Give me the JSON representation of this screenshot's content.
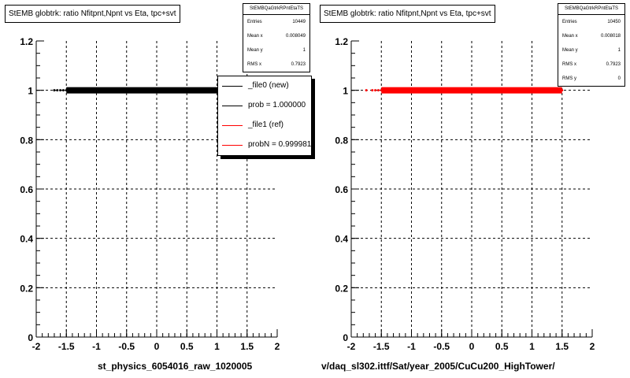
{
  "charts": [
    {
      "title": "StEMB globtrk: ratio Nfitpnt,Npnt vs Eta, tpc+svt",
      "stats": {
        "name": "StEMBQaGtrkRPntEtaTS",
        "rows": [
          {
            "label": "Entries",
            "value": "10449"
          },
          {
            "label": "Mean x",
            "value": "0.008049"
          },
          {
            "label": "Mean y",
            "value": "1"
          },
          {
            "label": "RMS x",
            "value": "0.7923"
          }
        ]
      },
      "legend": [
        {
          "label": "_file0 (new)",
          "color": "#000000"
        },
        {
          "label": "prob = 1.000000",
          "color": "#000000"
        },
        {
          "label": "_file1 (ref)",
          "color": "#ff0000"
        },
        {
          "label": "probN = 0.999981",
          "color": "#ff0000"
        }
      ],
      "footer": "st_physics_6054016_raw_1020005"
    },
    {
      "title": "StEMB globtrk: ratio Nfitpnt,Npnt vs Eta, tpc+svt",
      "stats": {
        "name": "StEMBQaGtrkRPntEtaTS",
        "rows": [
          {
            "label": "Entries",
            "value": "10450"
          },
          {
            "label": "Mean x",
            "value": "0.008018"
          },
          {
            "label": "Mean y",
            "value": "1"
          },
          {
            "label": "RMS x",
            "value": "0.7923"
          },
          {
            "label": "RMS y",
            "value": "0"
          }
        ]
      },
      "footer": "v/daq_sl302.ittf/Sat/year_2005/CuCu200_HighTower/"
    }
  ],
  "chart_data": [
    {
      "type": "scatter",
      "title": "StEMB globtrk: ratio Nfitpnt,Npnt vs Eta, tpc+svt",
      "xlim": [
        -2,
        2
      ],
      "ylim": [
        0,
        1.2
      ],
      "x_ticks": [
        "-2",
        "-1.5",
        "-1",
        "-0.5",
        "0",
        "0.5",
        "1",
        "1.5",
        "2"
      ],
      "y_ticks": [
        "0",
        "0.2",
        "0.4",
        "0.6",
        "0.8",
        "1",
        "1.2"
      ],
      "grid": true,
      "series": [
        {
          "color": "#000000",
          "x": [
            -1.7,
            -1.65,
            -1.6,
            -1.55,
            -1.5,
            -1.4,
            -1.2,
            -1.0,
            -0.8,
            -0.6,
            -0.4,
            -0.2,
            0.0,
            0.2,
            0.4,
            0.6,
            0.8,
            1.0,
            1.2,
            1.4,
            1.5,
            1.6
          ],
          "y": [
            1,
            1,
            1,
            1,
            1,
            1,
            1,
            1,
            1,
            1,
            1,
            1,
            1,
            1,
            1,
            1,
            1,
            1,
            1,
            1,
            1,
            1
          ]
        }
      ]
    },
    {
      "type": "scatter",
      "title": "StEMB globtrk: ratio Nfitpnt,Npnt vs Eta, tpc+svt",
      "xlim": [
        -2,
        2
      ],
      "ylim": [
        0,
        1.2
      ],
      "x_ticks": [
        "-2",
        "-1.5",
        "-1",
        "-0.5",
        "0",
        "0.5",
        "1",
        "1.5",
        "2"
      ],
      "y_ticks": [
        "0",
        "0.2",
        "0.4",
        "0.6",
        "0.8",
        "1",
        "1.2"
      ],
      "grid": true,
      "series": [
        {
          "color": "#ff0000",
          "x": [
            -1.75,
            -1.65,
            -1.6,
            -1.55,
            -1.5,
            -1.4,
            -1.2,
            -1.0,
            -0.8,
            -0.6,
            -0.4,
            -0.2,
            0.0,
            0.2,
            0.4,
            0.6,
            0.8,
            1.0,
            1.2,
            1.4,
            1.5
          ],
          "y": [
            1,
            1,
            1,
            1,
            1,
            1,
            1,
            1,
            1,
            1,
            1,
            1,
            1,
            1,
            1,
            1,
            1,
            1,
            1,
            1,
            1
          ]
        }
      ]
    }
  ]
}
